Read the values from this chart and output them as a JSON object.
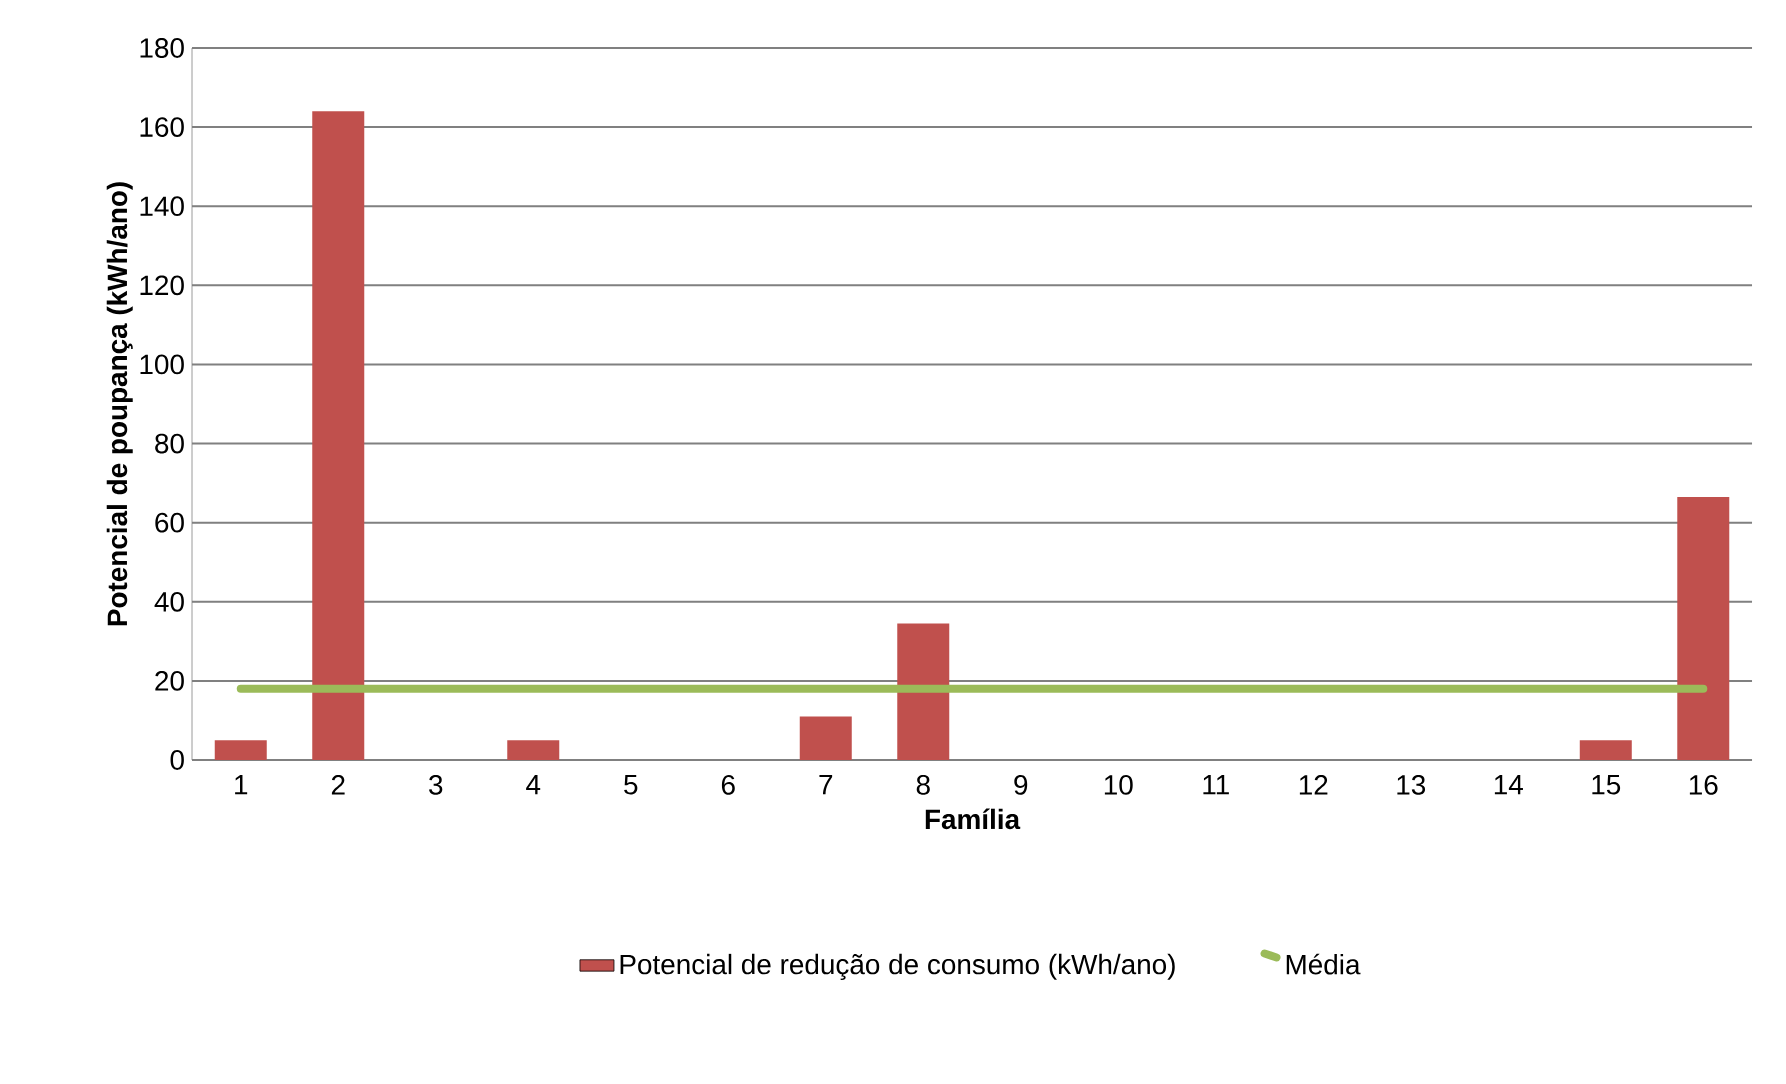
{
  "chart_data": {
    "type": "bar",
    "xlabel": "Família",
    "ylabel": "Potencial de poupança  (kWh/ano)",
    "categories": [
      "1",
      "2",
      "3",
      "4",
      "5",
      "6",
      "7",
      "8",
      "9",
      "10",
      "11",
      "12",
      "13",
      "14",
      "15",
      "16"
    ],
    "series": [
      {
        "name": "Potencial de redução de consumo (kWh/ano)",
        "color": "#c0504d",
        "values": [
          5,
          164,
          0,
          5,
          0,
          0,
          11,
          34.5,
          0,
          0,
          0,
          0,
          0,
          0,
          5,
          66.5
        ]
      },
      {
        "name": "Média",
        "type": "line",
        "color": "#9bbb59",
        "values": [
          18,
          18,
          18,
          18,
          18,
          18,
          18,
          18,
          18,
          18,
          18,
          18,
          18,
          18,
          18,
          18
        ]
      }
    ],
    "ylim": [
      0,
      180
    ],
    "yticks": [
      0,
      20,
      40,
      60,
      80,
      100,
      120,
      140,
      160,
      180
    ],
    "grid": "y",
    "legend": "bottom",
    "marker": "none"
  }
}
